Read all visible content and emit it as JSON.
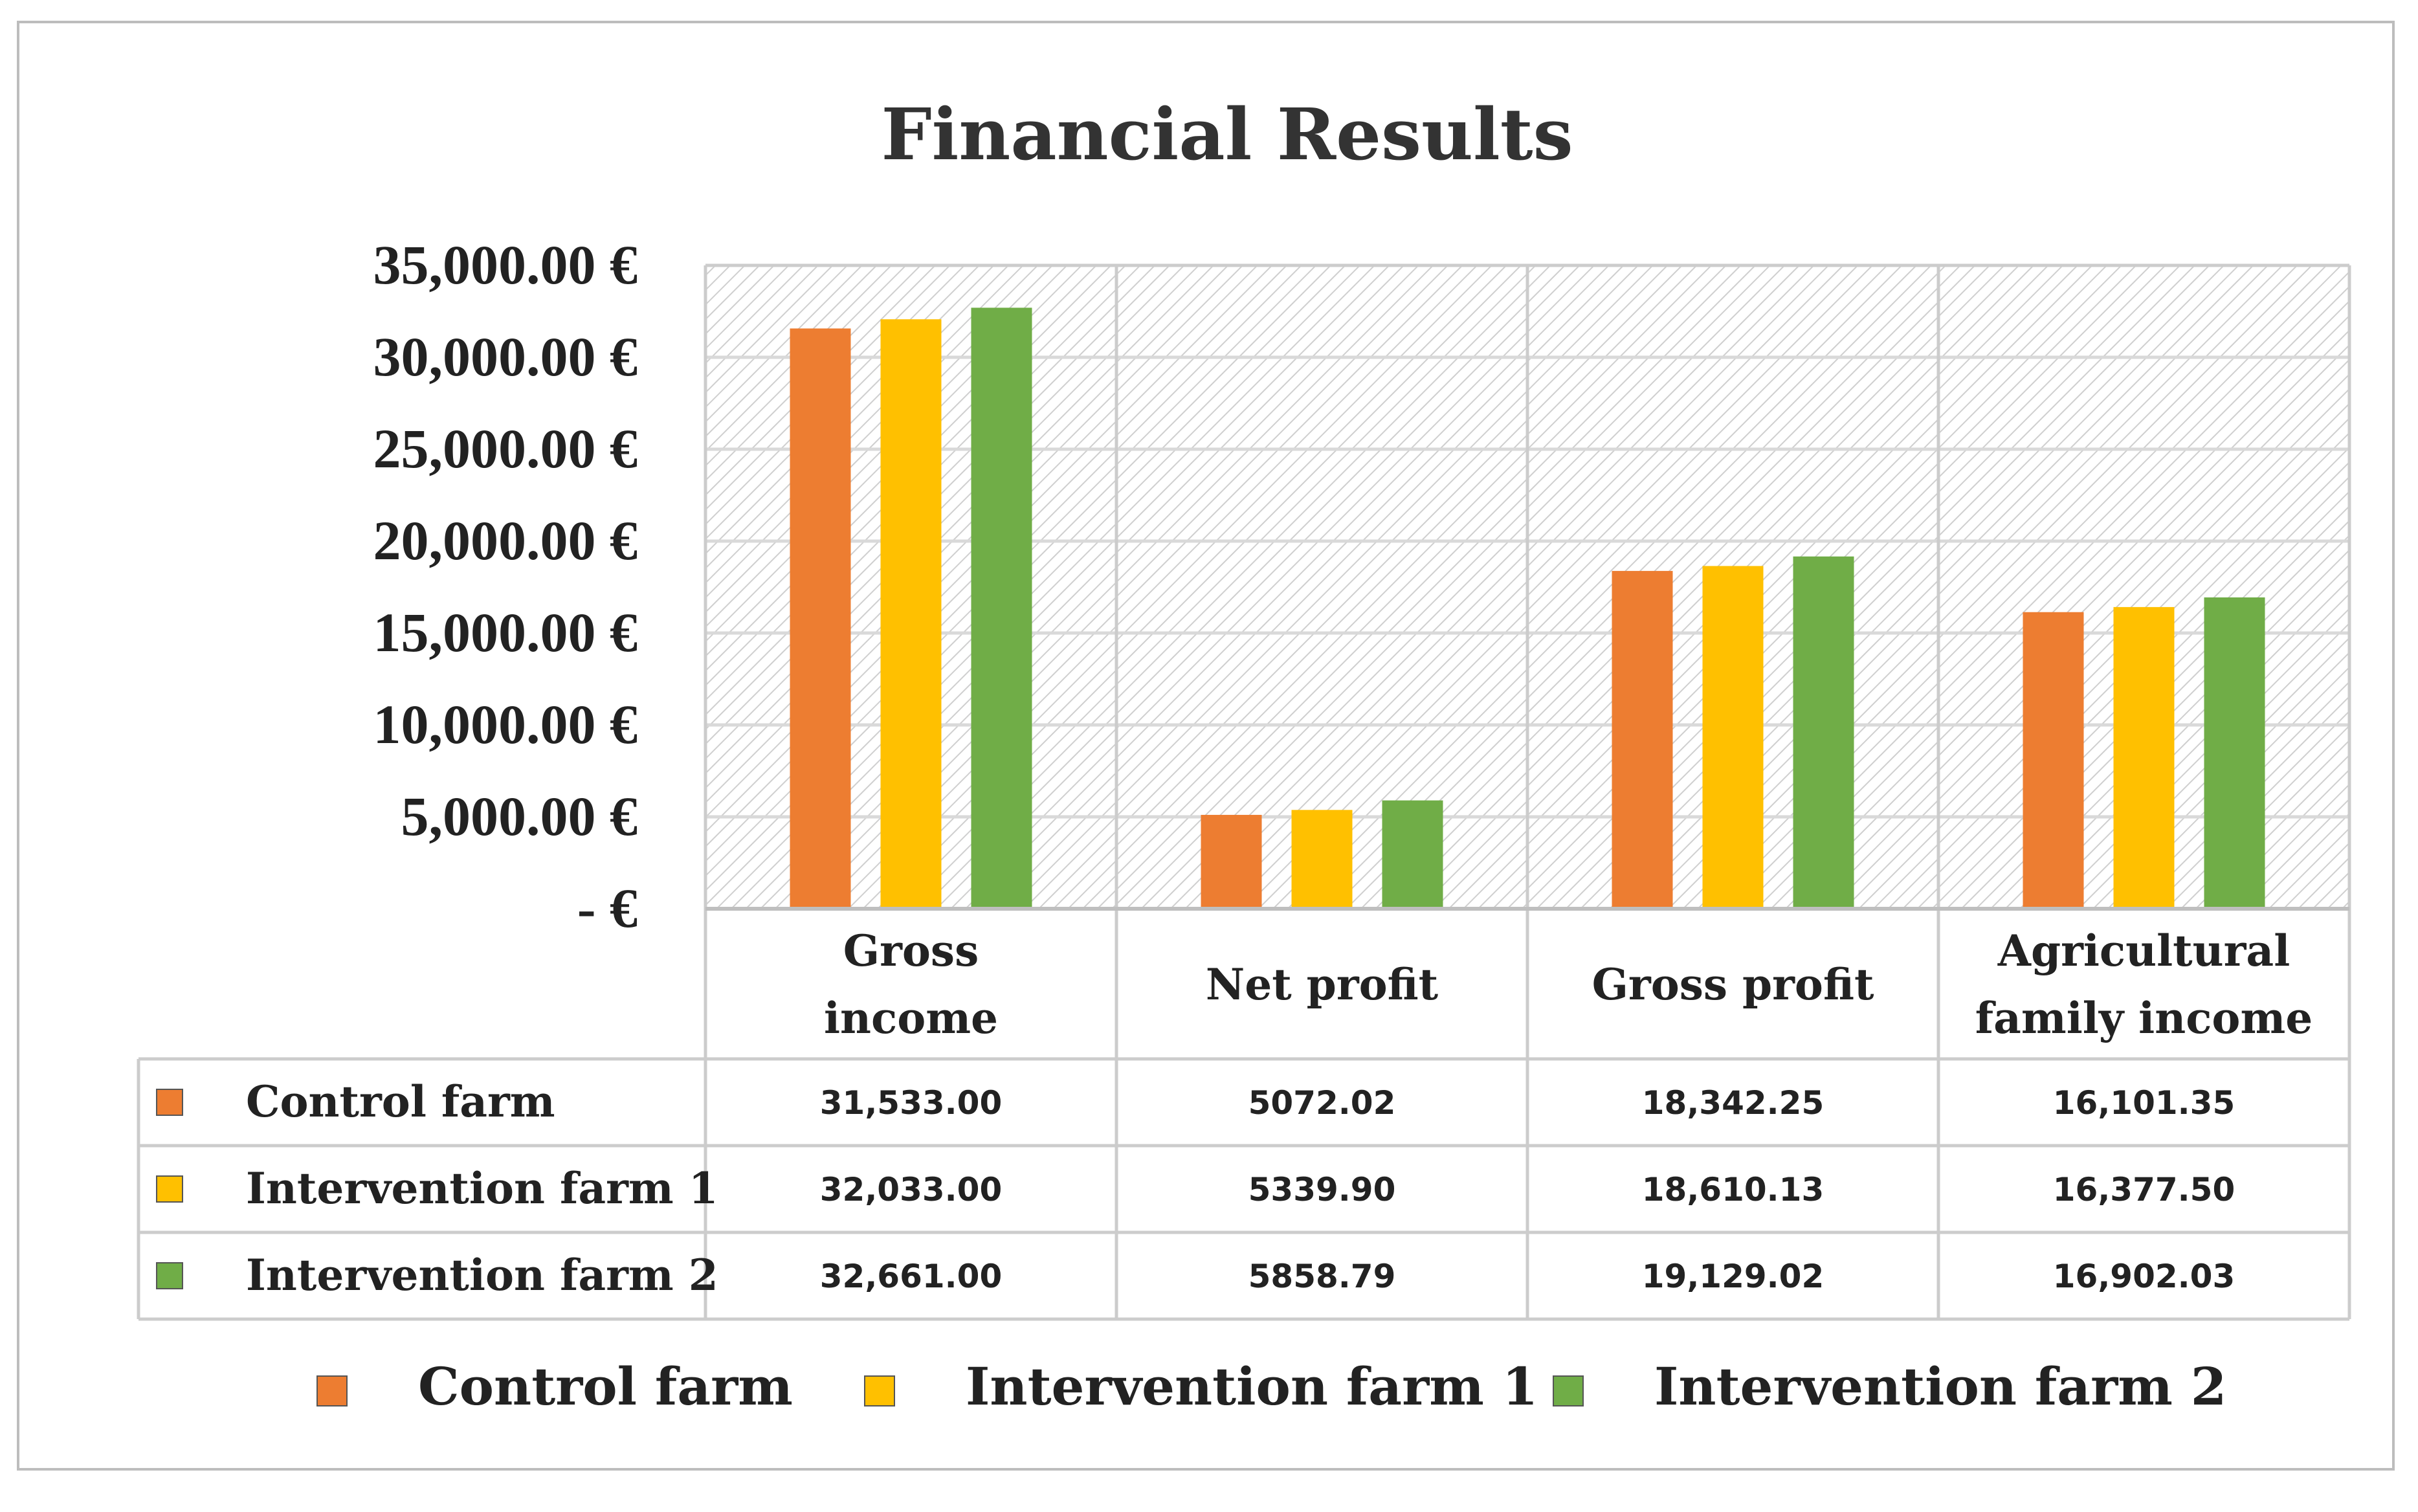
{
  "chart_data": {
    "type": "bar",
    "title": "Financial Results",
    "xlabel": "",
    "ylabel": "",
    "ylim": [
      0,
      35000
    ],
    "yticks": [
      {
        "value": 0,
        "label": "-  €"
      },
      {
        "value": 5000,
        "label": "5,000.00 €"
      },
      {
        "value": 10000,
        "label": "10,000.00 €"
      },
      {
        "value": 15000,
        "label": "15,000.00 €"
      },
      {
        "value": 20000,
        "label": "20,000.00 €"
      },
      {
        "value": 25000,
        "label": "25,000.00 €"
      },
      {
        "value": 30000,
        "label": "30,000.00 €"
      },
      {
        "value": 35000,
        "label": "35,000.00 €"
      }
    ],
    "categories": [
      {
        "lines": [
          "Gross",
          "income"
        ]
      },
      {
        "lines": [
          "Net profit"
        ]
      },
      {
        "lines": [
          "Gross profit"
        ]
      },
      {
        "lines": [
          "Agricultural",
          "family income"
        ]
      }
    ],
    "series": [
      {
        "name": "Control farm",
        "color": "#ED7D31",
        "values": [
          31533.0,
          5072.02,
          18342.25,
          16101.35
        ],
        "labels": [
          "31,533.00",
          "5072.02",
          "18,342.25",
          "16,101.35"
        ]
      },
      {
        "name": "Intervention farm 1",
        "color": "#FFC000",
        "values": [
          32033.0,
          5339.9,
          18610.13,
          16377.5
        ],
        "labels": [
          "32,033.00",
          "5339.90",
          "18,610.13",
          "16,377.50"
        ]
      },
      {
        "name": "Intervention farm 2",
        "color": "#70AD47",
        "values": [
          32661.0,
          5858.79,
          19129.02,
          16902.03
        ],
        "labels": [
          "32,661.00",
          "5858.79",
          "19,129.02",
          "16,902.03"
        ]
      }
    ],
    "grid": true,
    "data_table": true,
    "legend_position": "bottom"
  }
}
